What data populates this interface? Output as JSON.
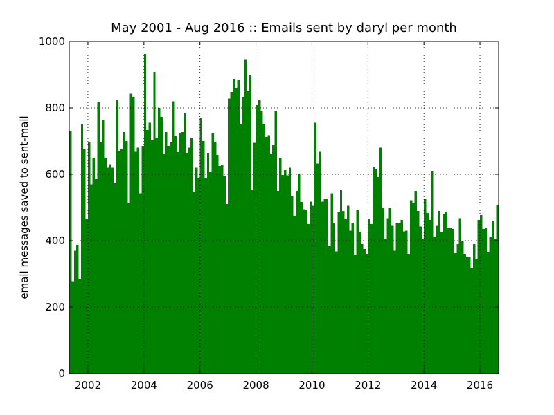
{
  "chart_data": {
    "type": "bar",
    "title": "May 2001 - Aug 2016 :: Emails sent by daryl per month",
    "y_label": "email messages saved to sent-mail",
    "x": [
      2001.333,
      2001.417,
      2001.5,
      2001.583,
      2001.667,
      2001.75,
      2001.833,
      2001.917,
      2002,
      2002.083,
      2002.167,
      2002.25,
      2002.333,
      2002.417,
      2002.5,
      2002.583,
      2002.667,
      2002.75,
      2002.833,
      2002.917,
      2003,
      2003.083,
      2003.167,
      2003.25,
      2003.333,
      2003.417,
      2003.5,
      2003.583,
      2003.667,
      2003.75,
      2003.833,
      2003.917,
      2004,
      2004.083,
      2004.167,
      2004.25,
      2004.333,
      2004.417,
      2004.5,
      2004.583,
      2004.667,
      2004.75,
      2004.833,
      2004.917,
      2005,
      2005.083,
      2005.167,
      2005.25,
      2005.333,
      2005.417,
      2005.5,
      2005.583,
      2005.667,
      2005.75,
      2005.833,
      2005.917,
      2006,
      2006.083,
      2006.167,
      2006.25,
      2006.333,
      2006.417,
      2006.5,
      2006.583,
      2006.667,
      2006.75,
      2006.833,
      2006.917,
      2007,
      2007.083,
      2007.167,
      2007.25,
      2007.333,
      2007.417,
      2007.5,
      2007.583,
      2007.667,
      2007.75,
      2007.833,
      2007.917,
      2008,
      2008.083,
      2008.167,
      2008.25,
      2008.333,
      2008.417,
      2008.5,
      2008.583,
      2008.667,
      2008.75,
      2008.833,
      2008.917,
      2009,
      2009.083,
      2009.167,
      2009.25,
      2009.333,
      2009.417,
      2009.5,
      2009.583,
      2009.667,
      2009.75,
      2009.833,
      2009.917,
      2010,
      2010.083,
      2010.167,
      2010.25,
      2010.333,
      2010.417,
      2010.5,
      2010.583,
      2010.667,
      2010.75,
      2010.833,
      2010.917,
      2011,
      2011.083,
      2011.167,
      2011.25,
      2011.333,
      2011.417,
      2011.5,
      2011.583,
      2011.667,
      2011.75,
      2011.833,
      2011.917,
      2012,
      2012.083,
      2012.167,
      2012.25,
      2012.333,
      2012.417,
      2012.5,
      2012.583,
      2012.667,
      2012.75,
      2012.833,
      2012.917,
      2013,
      2013.083,
      2013.167,
      2013.25,
      2013.333,
      2013.417,
      2013.5,
      2013.583,
      2013.667,
      2013.75,
      2013.833,
      2013.917,
      2014,
      2014.083,
      2014.167,
      2014.25,
      2014.333,
      2014.417,
      2014.5,
      2014.583,
      2014.667,
      2014.75,
      2014.833,
      2014.917,
      2015,
      2015.083,
      2015.167,
      2015.25,
      2015.333,
      2015.417,
      2015.5,
      2015.583,
      2015.667,
      2015.75,
      2015.833,
      2015.917,
      2016,
      2016.083,
      2016.167,
      2016.25,
      2016.333,
      2016.417,
      2016.5,
      2016.583
    ],
    "values": [
      730,
      278,
      370,
      387,
      283,
      750,
      675,
      467,
      697,
      570,
      650,
      585,
      817,
      697,
      765,
      650,
      620,
      630,
      620,
      573,
      823,
      670,
      675,
      727,
      700,
      512,
      843,
      833,
      668,
      680,
      543,
      685,
      963,
      733,
      755,
      702,
      908,
      710,
      800,
      773,
      663,
      727,
      685,
      697,
      820,
      715,
      667,
      725,
      727,
      783,
      665,
      680,
      710,
      548,
      620,
      590,
      770,
      700,
      588,
      665,
      608,
      725,
      697,
      658,
      625,
      628,
      595,
      510,
      828,
      848,
      887,
      860,
      885,
      750,
      833,
      945,
      850,
      898,
      552,
      695,
      808,
      823,
      790,
      750,
      712,
      718,
      662,
      688,
      792,
      550,
      650,
      598,
      612,
      597,
      620,
      533,
      475,
      550,
      600,
      517,
      495,
      492,
      450,
      518,
      505,
      755,
      632,
      668,
      518,
      527,
      527,
      385,
      543,
      453,
      368,
      488,
      553,
      490,
      465,
      505,
      430,
      453,
      358,
      492,
      425,
      390,
      375,
      360,
      465,
      450,
      622,
      615,
      592,
      680,
      500,
      405,
      468,
      498,
      445,
      370,
      453,
      452,
      462,
      428,
      430,
      360,
      522,
      515,
      550,
      490,
      443,
      405,
      525,
      483,
      462,
      610,
      412,
      445,
      490,
      425,
      480,
      487,
      437,
      440,
      435,
      362,
      390,
      468,
      398,
      360,
      350,
      352,
      318,
      390,
      345,
      463,
      477,
      435,
      440,
      365,
      410,
      460,
      405,
      508
    ],
    "color": "#008000",
    "xlim": [
      2001.333,
      2016.667
    ],
    "xticks": [
      2002,
      2004,
      2006,
      2008,
      2010,
      2012,
      2014,
      2016
    ],
    "ylim": [
      0,
      1000
    ],
    "yticks": [
      0,
      200,
      400,
      600,
      800,
      1000
    ],
    "grid": true
  }
}
